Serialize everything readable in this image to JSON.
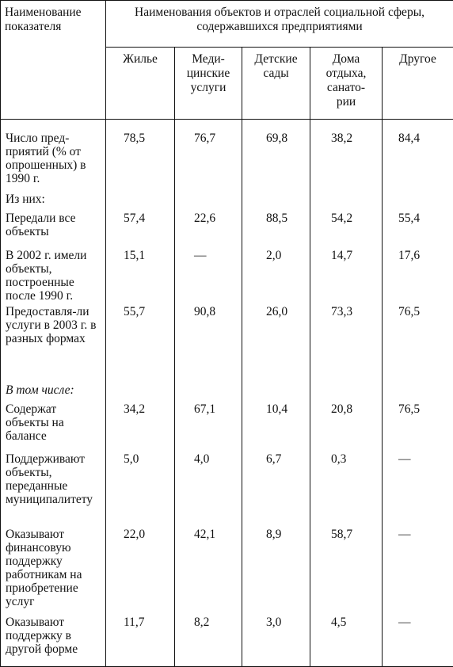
{
  "table": {
    "header": {
      "row_label_header": "Наименование показателя",
      "group_header": "Наименования объектов и отраслей социальной сферы, содержавшихся предприятиями",
      "columns": [
        "Жилье",
        "Меди-цинские услуги",
        "Детские сады",
        "Дома отдыха, санато-рии",
        "Другое"
      ]
    },
    "rows": [
      {
        "label": "Число пред-приятий (% от опрошенных) в 1990 г.",
        "values": [
          "78,5",
          "76,7",
          "69,8",
          "38,2",
          "84,4"
        ]
      },
      {
        "label": "Из них:",
        "values": [
          "",
          "",
          "",
          "",
          ""
        ]
      },
      {
        "label": "Передали все объекты",
        "values": [
          "57,4",
          "22,6",
          "88,5",
          "54,2",
          "55,4"
        ]
      },
      {
        "label": "В 2002 г. имели объекты, построенные после 1990 г.",
        "values": [
          "15,1",
          "—",
          "2,0",
          "14,7",
          "17,6"
        ]
      },
      {
        "label": "Предоставля-ли услуги в 2003 г. в разных формах",
        "values": [
          "55,7",
          "90,8",
          "26,0",
          "73,3",
          "76,5"
        ]
      },
      {
        "label": "В том числе:",
        "values": [
          "",
          "",
          "",
          "",
          ""
        ]
      },
      {
        "label": "Содержат объекты на балансе",
        "values": [
          "34,2",
          "67,1",
          "10,4",
          "20,8",
          "76,5"
        ]
      },
      {
        "label": "Поддерживают объекты, переданные муниципалитету",
        "values": [
          "5,0",
          "4,0",
          "6,7",
          "0,3",
          "—"
        ]
      },
      {
        "label": "Оказывают финансовую поддержку работникам на приобретение услуг",
        "values": [
          "22,0",
          "42,1",
          "8,9",
          "58,7",
          "—"
        ]
      },
      {
        "label": "Оказывают поддержку в другой форме",
        "values": [
          "11,7",
          "8,2",
          "3,0",
          "4,5",
          "—"
        ]
      }
    ]
  }
}
